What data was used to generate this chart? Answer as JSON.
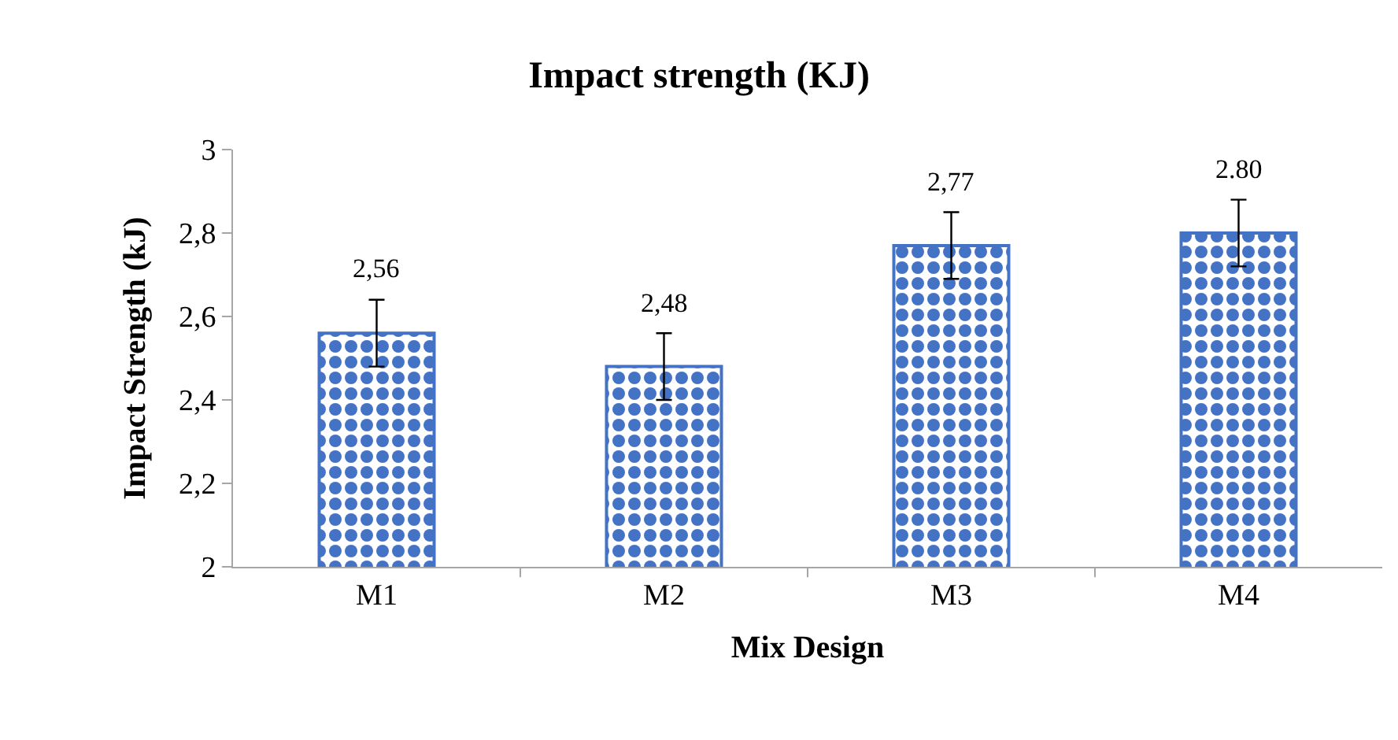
{
  "chart_data": {
    "type": "bar",
    "title": "Impact strength (KJ)",
    "xlabel": "Mix Design",
    "ylabel": "Impact Strength (kJ)",
    "categories": [
      "M1",
      "M2",
      "M3",
      "M4"
    ],
    "values": [
      2.56,
      2.48,
      2.77,
      2.8
    ],
    "errors": [
      0.08,
      0.08,
      0.08,
      0.08
    ],
    "value_labels": [
      "2,56",
      "2,48",
      "2,77",
      "2.80"
    ],
    "color": "#4472c4",
    "ylim": [
      2,
      3
    ],
    "yticks": [
      {
        "value": 2,
        "label": "2"
      },
      {
        "value": 2.2,
        "label": "2,2"
      },
      {
        "value": 2.4,
        "label": "2,4"
      },
      {
        "value": 2.6,
        "label": "2,6"
      },
      {
        "value": 2.8,
        "label": "2,8"
      },
      {
        "value": 3,
        "label": "3"
      }
    ],
    "legend": false
  }
}
